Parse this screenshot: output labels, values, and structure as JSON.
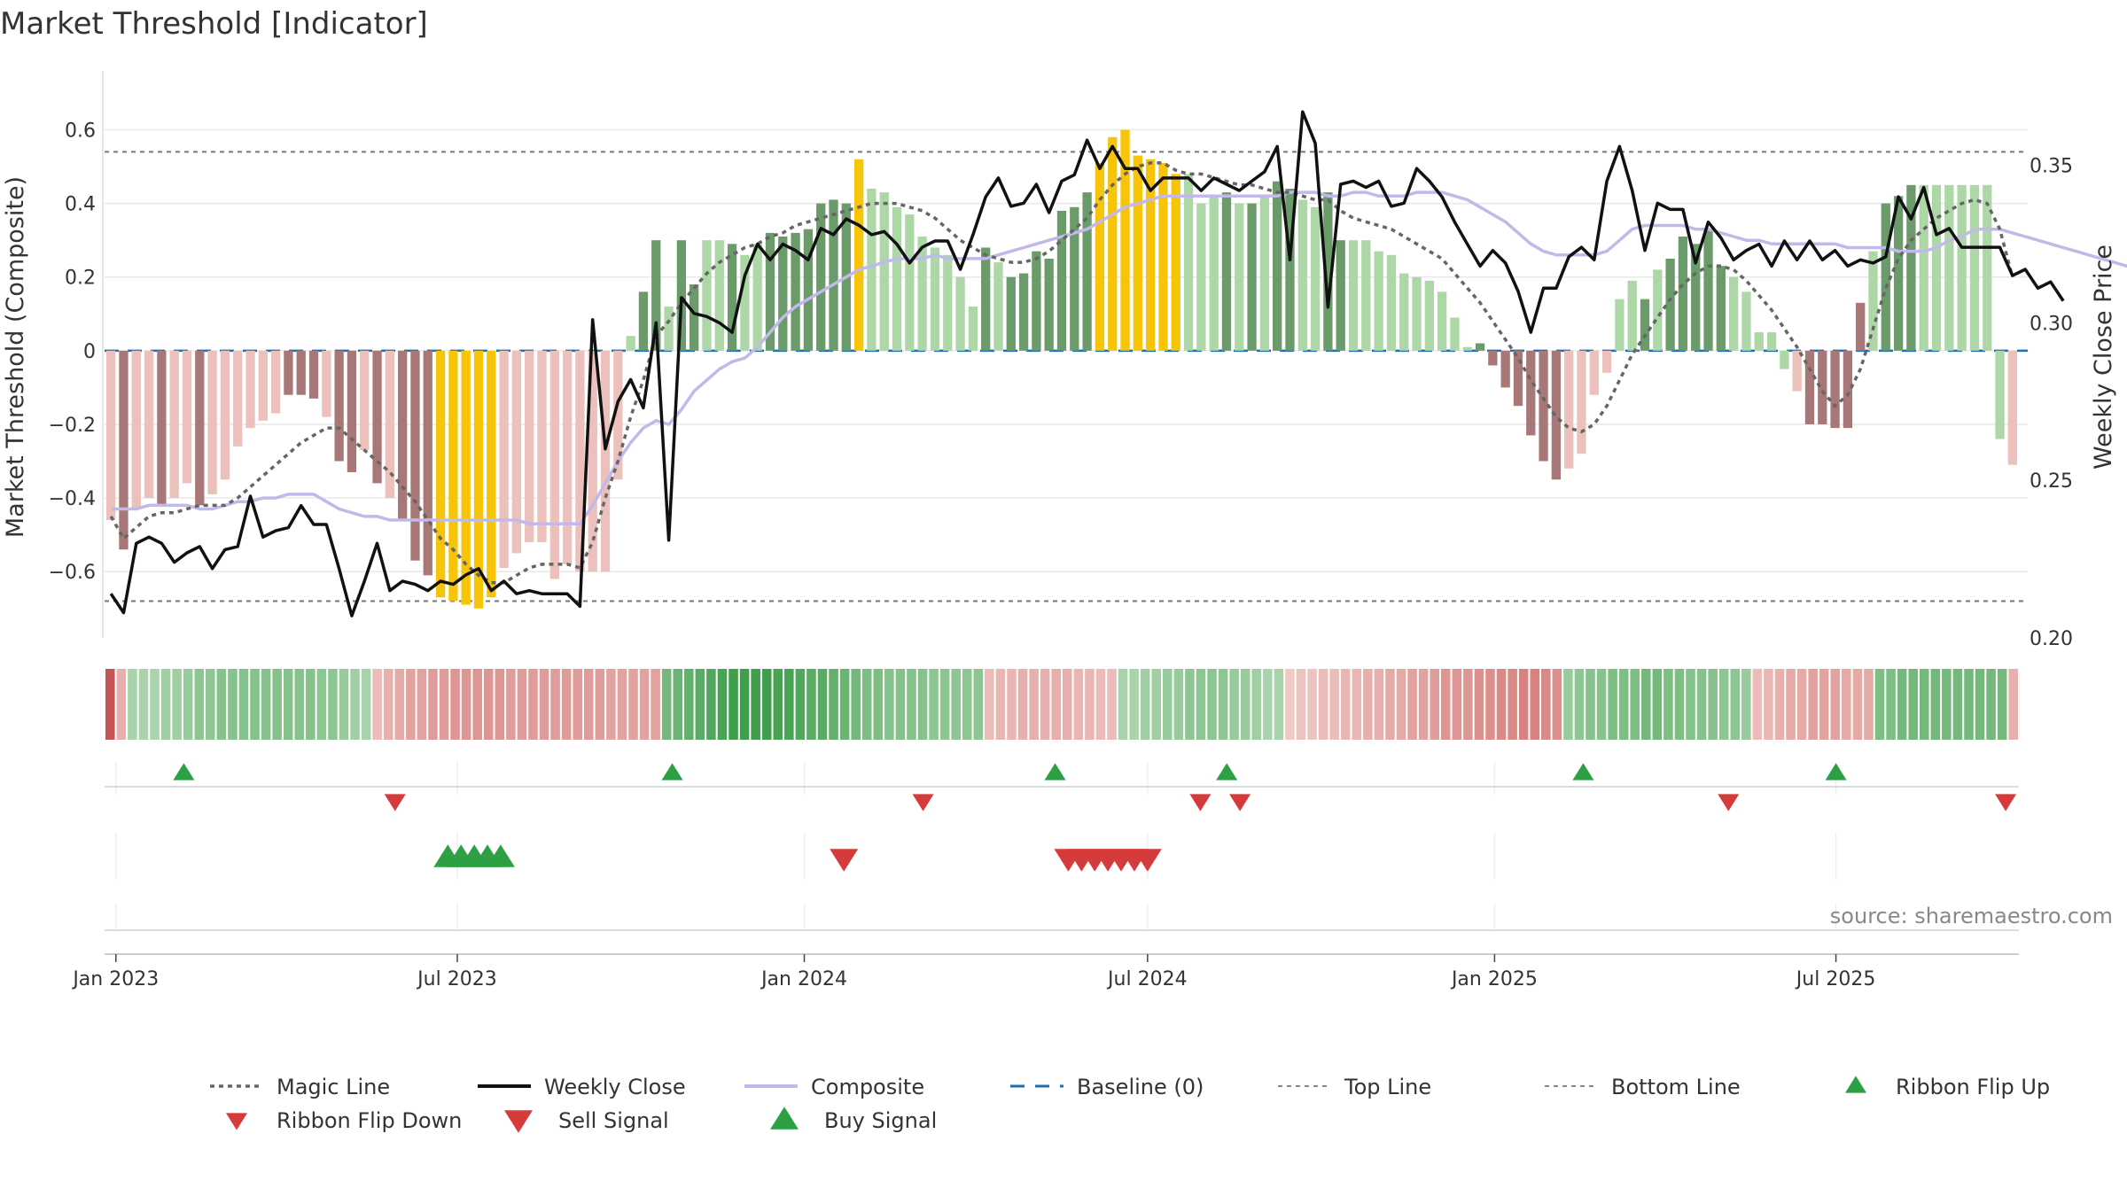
{
  "title": "Market Threshold [Indicator]",
  "source": "source: sharemaestro.com",
  "colors": {
    "pos_dark": "#6b9a6b",
    "pos_light": "#aed7a8",
    "neg_dark": "#a87878",
    "neg_light": "#ecc0bb",
    "extreme": "#f7c407",
    "magic": "#666666",
    "close": "#111111",
    "composite": "#c3b8ea",
    "baseline": "#1f6fb0",
    "guide": "#777777",
    "up": "#2ca043",
    "down": "#d63b3b"
  },
  "chart_data": {
    "type": "bar",
    "title": "Market Threshold [Indicator]",
    "ylabel_left": "Market Threshold (Composite)",
    "ylabel_right": "Weekly Close Price",
    "ylim_left": [
      -0.78,
      0.76
    ],
    "ylim_right": [
      0.2,
      0.38
    ],
    "left_ticks": [
      -0.6,
      -0.4,
      -0.2,
      0,
      0.2,
      0.4,
      0.6
    ],
    "left_tick_labels": [
      "−0.6",
      "−0.4",
      "−0.2",
      "0",
      "0.2",
      "0.4",
      "0.6"
    ],
    "right_ticks": [
      0.2,
      0.25,
      0.3,
      0.35
    ],
    "right_tick_labels": [
      "0.20",
      "0.25",
      "0.30",
      "0.35"
    ],
    "x_start": "2022-12-26",
    "x_end": "2025-10-06",
    "x_ticks": [
      "2023-01-01",
      "2023-07-01",
      "2024-01-01",
      "2024-07-01",
      "2025-01-01",
      "2025-07-01"
    ],
    "x_tick_labels": [
      "Jan 2023",
      "Jul 2023",
      "Jan 2024",
      "Jul 2024",
      "Jan 2025",
      "Jul 2025"
    ],
    "top_line": 0.54,
    "bottom_line": -0.68,
    "baseline": 0,
    "weekly_dates_step_days": 7,
    "bars": [
      -0.46,
      -0.54,
      -0.43,
      -0.4,
      -0.42,
      -0.4,
      -0.36,
      -0.42,
      -0.39,
      -0.35,
      -0.26,
      -0.21,
      -0.19,
      -0.17,
      -0.12,
      -0.12,
      -0.13,
      -0.18,
      -0.3,
      -0.33,
      -0.27,
      -0.36,
      -0.4,
      -0.46,
      -0.57,
      -0.61,
      -0.67,
      -0.68,
      -0.69,
      -0.7,
      -0.67,
      -0.59,
      -0.55,
      -0.52,
      -0.52,
      -0.62,
      -0.58,
      -0.6,
      -0.6,
      -0.6,
      -0.35,
      0.04,
      0.16,
      0.3,
      0.12,
      0.3,
      0.18,
      0.3,
      0.3,
      0.29,
      0.26,
      0.29,
      0.32,
      0.31,
      0.32,
      0.33,
      0.4,
      0.41,
      0.4,
      0.52,
      0.44,
      0.43,
      0.39,
      0.37,
      0.31,
      0.28,
      0.26,
      0.2,
      0.12,
      0.28,
      0.24,
      0.2,
      0.21,
      0.27,
      0.25,
      0.38,
      0.39,
      0.43,
      0.51,
      0.58,
      0.6,
      0.53,
      0.52,
      0.51,
      0.48,
      0.48,
      0.4,
      0.42,
      0.43,
      0.4,
      0.4,
      0.42,
      0.46,
      0.44,
      0.41,
      0.39,
      0.43,
      0.3,
      0.3,
      0.3,
      0.27,
      0.26,
      0.21,
      0.2,
      0.19,
      0.16,
      0.09,
      0.01,
      0.02,
      -0.04,
      -0.1,
      -0.15,
      -0.23,
      -0.3,
      -0.35,
      -0.32,
      -0.28,
      -0.12,
      -0.06,
      0.14,
      0.19,
      0.14,
      0.22,
      0.25,
      0.31,
      0.29,
      0.33,
      0.23,
      0.2,
      0.16,
      0.05,
      0.05,
      -0.05,
      -0.11,
      -0.2,
      -0.2,
      -0.21,
      -0.21,
      0.13,
      0.27,
      0.4,
      0.42,
      0.45,
      0.45,
      0.45,
      0.45,
      0.45,
      0.45,
      0.45,
      -0.24,
      -0.31
    ],
    "bar_style": [
      "nl",
      "nd",
      "nl",
      "nl",
      "nd",
      "nl",
      "nl",
      "nd",
      "nl",
      "nl",
      "nl",
      "nl",
      "nl",
      "nl",
      "nd",
      "nd",
      "nd",
      "nl",
      "nd",
      "nd",
      "nl",
      "nd",
      "nl",
      "nd",
      "nd",
      "nd",
      "ex",
      "ex",
      "ex",
      "ex",
      "ex",
      "nl",
      "nl",
      "nl",
      "nl",
      "nl",
      "nl",
      "nl",
      "nl",
      "nl",
      "nl",
      "pl",
      "pd",
      "pd",
      "pl",
      "pd",
      "pd",
      "pl",
      "pl",
      "pd",
      "pl",
      "pl",
      "pd",
      "pd",
      "pd",
      "pd",
      "pd",
      "pd",
      "pd",
      "ex",
      "pl",
      "pl",
      "pl",
      "pl",
      "pl",
      "pl",
      "pl",
      "pl",
      "pl",
      "pd",
      "pl",
      "pd",
      "pd",
      "pd",
      "pd",
      "pd",
      "pd",
      "pd",
      "ex",
      "ex",
      "ex",
      "ex",
      "ex",
      "ex",
      "ex",
      "pl",
      "pl",
      "pl",
      "pd",
      "pl",
      "pd",
      "pl",
      "pd",
      "pd",
      "pl",
      "pl",
      "pd",
      "pd",
      "pl",
      "pl",
      "pl",
      "pl",
      "pl",
      "pl",
      "pl",
      "pl",
      "pl",
      "pl",
      "pd",
      "nd",
      "nd",
      "nd",
      "nd",
      "nd",
      "nd",
      "nl",
      "nl",
      "nl",
      "nl",
      "pl",
      "pl",
      "pd",
      "pl",
      "pd",
      "pd",
      "pd",
      "pd",
      "pd",
      "pl",
      "pl",
      "pl",
      "pl",
      "pl",
      "nl",
      "nd",
      "nd",
      "nd",
      "nd",
      "nd",
      "pl",
      "pd",
      "pd",
      "pd",
      "pl",
      "pl",
      "pl",
      "pl",
      "pl",
      "pl",
      "pl",
      "nl",
      "nd"
    ],
    "series": [
      {
        "name": "Weekly Close",
        "axis": "right",
        "values": [
          0.214,
          0.208,
          0.23,
          0.232,
          0.23,
          0.224,
          0.227,
          0.229,
          0.222,
          0.228,
          0.229,
          0.245,
          0.232,
          0.234,
          0.235,
          0.242,
          0.236,
          0.236,
          0.222,
          0.207,
          0.218,
          0.23,
          0.215,
          0.218,
          0.217,
          0.215,
          0.218,
          0.217,
          0.22,
          0.222,
          0.215,
          0.218,
          0.214,
          0.215,
          0.214,
          0.214,
          0.214,
          0.21,
          0.301,
          0.26,
          0.275,
          0.282,
          0.273,
          0.3,
          0.231,
          0.308,
          0.303,
          0.302,
          0.3,
          0.297,
          0.315,
          0.325,
          0.32,
          0.325,
          0.323,
          0.32,
          0.33,
          0.328,
          0.333,
          0.331,
          0.328,
          0.329,
          0.325,
          0.319,
          0.324,
          0.326,
          0.326,
          0.317,
          0.328,
          0.34,
          0.346,
          0.337,
          0.338,
          0.344,
          0.335,
          0.345,
          0.347,
          0.358,
          0.349,
          0.356,
          0.349,
          0.349,
          0.342,
          0.346,
          0.346,
          0.346,
          0.342,
          0.346,
          0.344,
          0.342,
          0.345,
          0.348,
          0.356,
          0.32,
          0.367,
          0.357,
          0.305,
          0.344,
          0.345,
          0.343,
          0.345,
          0.337,
          0.338,
          0.349,
          0.345,
          0.34,
          0.332,
          0.325,
          0.318,
          0.323,
          0.319,
          0.31,
          0.297,
          0.311,
          0.311,
          0.321,
          0.324,
          0.32,
          0.345,
          0.356,
          0.342,
          0.323,
          0.338,
          0.336,
          0.336,
          0.319,
          0.332,
          0.327,
          0.32,
          0.323,
          0.325,
          0.318,
          0.326,
          0.32,
          0.326,
          0.32,
          0.323,
          0.318,
          0.32,
          0.319,
          0.321,
          0.34,
          0.333,
          0.343,
          0.328,
          0.33,
          0.324,
          0.324,
          0.324,
          0.324,
          0.315,
          0.317,
          0.311,
          0.313,
          0.307
        ]
      },
      {
        "name": "Composite",
        "values": [
          -0.43,
          -0.43,
          -0.43,
          -0.42,
          -0.42,
          -0.42,
          -0.42,
          -0.43,
          -0.43,
          -0.42,
          -0.41,
          -0.41,
          -0.4,
          -0.4,
          -0.39,
          -0.39,
          -0.39,
          -0.41,
          -0.43,
          -0.44,
          -0.45,
          -0.45,
          -0.46,
          -0.46,
          -0.46,
          -0.46,
          -0.46,
          -0.46,
          -0.46,
          -0.46,
          -0.46,
          -0.46,
          -0.46,
          -0.47,
          -0.47,
          -0.47,
          -0.47,
          -0.47,
          -0.42,
          -0.36,
          -0.3,
          -0.25,
          -0.21,
          -0.19,
          -0.2,
          -0.16,
          -0.11,
          -0.08,
          -0.05,
          -0.03,
          -0.02,
          0.01,
          0.05,
          0.09,
          0.12,
          0.14,
          0.16,
          0.18,
          0.2,
          0.22,
          0.23,
          0.24,
          0.25,
          0.25,
          0.25,
          0.26,
          0.25,
          0.25,
          0.25,
          0.25,
          0.26,
          0.27,
          0.28,
          0.29,
          0.3,
          0.31,
          0.32,
          0.33,
          0.35,
          0.37,
          0.39,
          0.4,
          0.41,
          0.42,
          0.42,
          0.42,
          0.42,
          0.42,
          0.42,
          0.42,
          0.42,
          0.42,
          0.42,
          0.43,
          0.43,
          0.43,
          0.42,
          0.42,
          0.43,
          0.43,
          0.42,
          0.42,
          0.42,
          0.43,
          0.43,
          0.43,
          0.42,
          0.41,
          0.39,
          0.37,
          0.35,
          0.32,
          0.29,
          0.27,
          0.26,
          0.26,
          0.26,
          0.26,
          0.27,
          0.3,
          0.33,
          0.34,
          0.34,
          0.34,
          0.34,
          0.33,
          0.33,
          0.32,
          0.31,
          0.3,
          0.3,
          0.29,
          0.29,
          0.29,
          0.29,
          0.29,
          0.29,
          0.28,
          0.28,
          0.28,
          0.28,
          0.27,
          0.27,
          0.27,
          0.28,
          0.3,
          0.31,
          0.33,
          0.33,
          0.33,
          0.32,
          0.31,
          0.3,
          0.29,
          0.28,
          0.27,
          0.26,
          0.25,
          0.24,
          0.23,
          0.22
        ]
      },
      {
        "name": "Magic Line",
        "values": [
          -0.45,
          -0.51,
          -0.48,
          -0.45,
          -0.44,
          -0.44,
          -0.43,
          -0.42,
          -0.42,
          -0.42,
          -0.4,
          -0.37,
          -0.34,
          -0.31,
          -0.28,
          -0.25,
          -0.23,
          -0.21,
          -0.21,
          -0.24,
          -0.27,
          -0.3,
          -0.33,
          -0.37,
          -0.41,
          -0.46,
          -0.51,
          -0.54,
          -0.58,
          -0.61,
          -0.63,
          -0.63,
          -0.61,
          -0.59,
          -0.58,
          -0.58,
          -0.58,
          -0.59,
          -0.52,
          -0.4,
          -0.3,
          -0.18,
          -0.08,
          0.04,
          0.08,
          0.13,
          0.17,
          0.21,
          0.24,
          0.26,
          0.28,
          0.29,
          0.31,
          0.32,
          0.34,
          0.35,
          0.36,
          0.37,
          0.38,
          0.39,
          0.4,
          0.4,
          0.4,
          0.39,
          0.38,
          0.36,
          0.33,
          0.3,
          0.28,
          0.26,
          0.25,
          0.24,
          0.24,
          0.25,
          0.27,
          0.3,
          0.33,
          0.36,
          0.41,
          0.45,
          0.48,
          0.5,
          0.51,
          0.51,
          0.49,
          0.48,
          0.48,
          0.47,
          0.46,
          0.45,
          0.45,
          0.44,
          0.43,
          0.43,
          0.42,
          0.41,
          0.41,
          0.38,
          0.36,
          0.35,
          0.34,
          0.33,
          0.31,
          0.29,
          0.27,
          0.25,
          0.21,
          0.17,
          0.13,
          0.08,
          0.03,
          -0.02,
          -0.08,
          -0.13,
          -0.18,
          -0.21,
          -0.22,
          -0.2,
          -0.15,
          -0.08,
          -0.01,
          0.04,
          0.09,
          0.14,
          0.18,
          0.21,
          0.23,
          0.23,
          0.22,
          0.19,
          0.15,
          0.11,
          0.06,
          0.01,
          -0.05,
          -0.11,
          -0.15,
          -0.12,
          -0.05,
          0.06,
          0.17,
          0.25,
          0.3,
          0.33,
          0.36,
          0.38,
          0.4,
          0.41,
          0.4,
          0.33,
          0.2
        ]
      }
    ],
    "ribbon": [
      -1,
      -0.3,
      0.3,
      0.3,
      0.3,
      0.35,
      0.35,
      0.4,
      0.45,
      0.45,
      0.5,
      0.5,
      0.5,
      0.5,
      0.5,
      0.5,
      0.5,
      0.5,
      0.5,
      0.45,
      0.45,
      0.4,
      0.35,
      0.3,
      -0.2,
      -0.3,
      -0.35,
      -0.4,
      -0.4,
      -0.45,
      -0.45,
      -0.5,
      -0.5,
      -0.5,
      -0.5,
      -0.5,
      -0.45,
      -0.45,
      -0.45,
      -0.45,
      -0.45,
      -0.45,
      -0.45,
      -0.45,
      -0.45,
      -0.4,
      -0.4,
      -0.4,
      -0.4,
      -0.4,
      0.6,
      0.65,
      0.7,
      0.75,
      0.8,
      0.85,
      0.9,
      0.9,
      0.9,
      0.9,
      0.85,
      0.85,
      0.8,
      0.75,
      0.75,
      0.7,
      0.65,
      0.6,
      0.55,
      0.55,
      0.5,
      0.5,
      0.5,
      0.5,
      0.45,
      0.45,
      0.45,
      0.45,
      0.45,
      -0.2,
      -0.25,
      -0.25,
      -0.3,
      -0.3,
      -0.3,
      -0.3,
      -0.3,
      -0.25,
      -0.25,
      -0.2,
      -0.2,
      0.3,
      0.3,
      0.35,
      0.35,
      0.4,
      0.4,
      0.45,
      0.45,
      0.45,
      0.45,
      0.4,
      0.4,
      0.35,
      0.3,
      0.3,
      -0.1,
      -0.15,
      -0.15,
      -0.2,
      -0.2,
      -0.25,
      -0.25,
      -0.3,
      -0.3,
      -0.35,
      -0.35,
      -0.4,
      -0.4,
      -0.45,
      -0.5,
      -0.5,
      -0.5,
      -0.55,
      -0.55,
      -0.6,
      -0.6,
      -0.65,
      -0.65,
      -0.6,
      -0.55,
      0.4,
      0.45,
      0.5,
      0.5,
      0.55,
      0.55,
      0.55,
      0.6,
      0.6,
      0.55,
      0.55,
      0.5,
      0.5,
      0.5,
      0.45,
      0.45,
      0.4,
      -0.2,
      -0.25,
      -0.3,
      -0.35,
      -0.35,
      -0.4,
      -0.4,
      -0.4,
      -0.35,
      -0.35,
      -0.35,
      0.55,
      0.55,
      0.6,
      0.6,
      0.6,
      0.6,
      0.6,
      0.6,
      0.6,
      0.6,
      0.6,
      0.6,
      -0.3
    ],
    "ribbon_flip_up": [
      "2023-02-06",
      "2023-10-23",
      "2024-05-13",
      "2024-08-12",
      "2025-02-17",
      "2025-07-01"
    ],
    "ribbon_flip_down": [
      "2023-05-29",
      "2024-03-04",
      "2024-07-29",
      "2024-08-19",
      "2025-05-05",
      "2025-09-29"
    ],
    "buy_signal": [
      "2023-06-26",
      "2023-07-03",
      "2023-07-10",
      "2023-07-17",
      "2023-07-24"
    ],
    "sell_signal": [
      "2024-01-22",
      "2024-05-20",
      "2024-05-27",
      "2024-06-03",
      "2024-06-10",
      "2024-06-17",
      "2024-06-24",
      "2024-07-01"
    ],
    "legend": [
      {
        "label": "Magic Line",
        "kind": "dotted",
        "color": "#666666"
      },
      {
        "label": "Weekly Close",
        "kind": "solid",
        "color": "#111111"
      },
      {
        "label": "Composite",
        "kind": "solid",
        "color": "#c3b8ea"
      },
      {
        "label": "Baseline (0)",
        "kind": "dashed",
        "color": "#1f6fb0"
      },
      {
        "label": "Top Line",
        "kind": "dotted-thin",
        "color": "#888888"
      },
      {
        "label": "Bottom Line",
        "kind": "dotted-thin",
        "color": "#888888"
      },
      {
        "label": "Ribbon Flip Up",
        "kind": "tri-up-small",
        "color": "#2ca043"
      },
      {
        "label": "Ribbon Flip Down",
        "kind": "tri-down-small",
        "color": "#d63b3b"
      },
      {
        "label": "Sell Signal",
        "kind": "tri-down",
        "color": "#d63b3b"
      },
      {
        "label": "Buy Signal",
        "kind": "tri-up",
        "color": "#2ca043"
      }
    ],
    "legend_position": "bottom-center",
    "grid": true
  }
}
